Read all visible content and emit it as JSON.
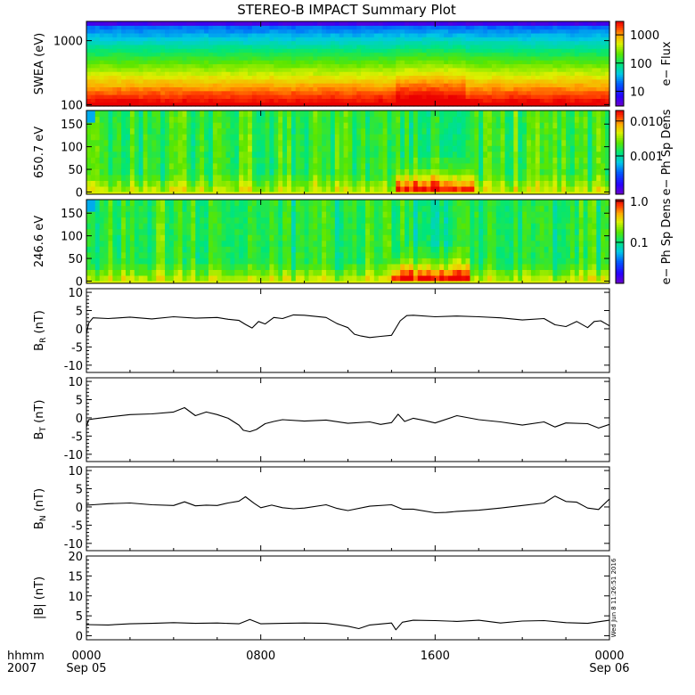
{
  "title": "STEREO-B IMPACT Summary Plot",
  "time_axis": {
    "row1_label": "hhmm",
    "row2_label": "2007",
    "ticks": [
      {
        "hour": 0,
        "top": "0000",
        "bottom": "Sep 05"
      },
      {
        "hour": 8,
        "top": "0800",
        "bottom": ""
      },
      {
        "hour": 16,
        "top": "1600",
        "bottom": ""
      },
      {
        "hour": 24,
        "top": "0000",
        "bottom": "Sep 06"
      }
    ],
    "range_hours": [
      0,
      24
    ]
  },
  "timestamp_text": "Wed Jun  8 11:26:51 2016",
  "chart_data": [
    {
      "type": "heatmap",
      "ylabel": "SWEA (eV)",
      "ylim": [
        95,
        2000
      ],
      "yscale": "log",
      "yticks": [
        {
          "v": 100,
          "label": "100"
        },
        {
          "v": 1000,
          "label": "1000"
        }
      ],
      "colorbar": {
        "label": "e− Flux",
        "scale": "log",
        "range": [
          3,
          3000
        ],
        "ticks": [
          {
            "v": 10,
            "label": "10"
          },
          {
            "v": 100,
            "label": "100"
          },
          {
            "v": 1000,
            "label": "1000"
          }
        ]
      },
      "colormap": "rainbow"
    },
    {
      "type": "heatmap",
      "ylabel": "650.7 eV",
      "ylim": [
        -5,
        180
      ],
      "yticks": [
        {
          "v": 0,
          "label": "0"
        },
        {
          "v": 50,
          "label": "50"
        },
        {
          "v": 100,
          "label": "100"
        },
        {
          "v": 150,
          "label": "150"
        }
      ],
      "colorbar": {
        "label": "e− Ph Sp Dens",
        "scale": "log",
        "range": [
          8e-05,
          0.02
        ],
        "ticks": [
          {
            "v": 0.001,
            "label": "0.001"
          },
          {
            "v": 0.01,
            "label": "0.010"
          }
        ]
      },
      "enhancement": {
        "hours": [
          14.2,
          17.8
        ],
        "pitch_max": 60
      }
    },
    {
      "type": "heatmap",
      "ylabel": "246.6 eV",
      "ylim": [
        -5,
        180
      ],
      "yticks": [
        {
          "v": 0,
          "label": "0"
        },
        {
          "v": 50,
          "label": "50"
        },
        {
          "v": 100,
          "label": "100"
        },
        {
          "v": 150,
          "label": "150"
        }
      ],
      "colorbar": {
        "label": "e− Ph Sp Dens",
        "scale": "log",
        "range": [
          0.01,
          1.1
        ],
        "ticks": [
          {
            "v": 0.1,
            "label": "0.1"
          },
          {
            "v": 1.0,
            "label": "1.0"
          }
        ]
      },
      "enhancement": {
        "hours": [
          14.0,
          17.6
        ],
        "pitch_max": 60
      }
    },
    {
      "type": "line",
      "ylabel": "B_R (nT)",
      "ylim": [
        -12,
        11
      ],
      "yticks": [
        -10,
        -5,
        0,
        5,
        10
      ],
      "x": [
        0,
        0.1,
        0.3,
        1,
        2,
        3,
        4,
        5,
        6,
        6.5,
        7,
        7.3,
        7.6,
        7.9,
        8.2,
        8.6,
        9,
        9.5,
        10,
        11,
        11.5,
        12,
        12.3,
        12.6,
        13,
        13.5,
        14,
        14.2,
        14.4,
        14.7,
        15,
        16,
        17,
        18,
        19,
        20,
        21,
        21.5,
        22,
        22.5,
        23,
        23.3,
        23.6,
        24
      ],
      "values": [
        -1.5,
        1.5,
        3,
        2.8,
        3.2,
        2.7,
        3.3,
        2.9,
        3.1,
        2.6,
        2.3,
        1.2,
        0.2,
        2.0,
        1.3,
        3.1,
        2.8,
        3.8,
        3.7,
        3.1,
        1.4,
        0.3,
        -1.5,
        -2.0,
        -2.4,
        -2.1,
        -1.8,
        0.2,
        2.2,
        3.6,
        3.7,
        3.3,
        3.5,
        3.3,
        3.0,
        2.4,
        2.8,
        1.1,
        0.6,
        2.0,
        0.3,
        2.0,
        2.2,
        0.8
      ]
    },
    {
      "type": "line",
      "ylabel": "B_T (nT)",
      "ylim": [
        -12,
        11
      ],
      "yticks": [
        -10,
        -5,
        0,
        5,
        10
      ],
      "x": [
        0,
        0.1,
        0.3,
        1,
        2,
        3,
        4,
        4.5,
        5,
        5.5,
        6,
        6.5,
        7,
        7.2,
        7.5,
        7.8,
        8.2,
        8.6,
        9,
        10,
        11,
        12,
        13,
        13.5,
        14,
        14.3,
        14.6,
        15,
        15.5,
        16,
        17,
        18,
        19,
        20,
        21,
        21.5,
        22,
        23,
        23.5,
        24
      ],
      "values": [
        -2.5,
        -0.5,
        -0.3,
        0.2,
        0.9,
        1.1,
        1.6,
        2.8,
        0.6,
        1.6,
        0.9,
        -0.1,
        -2.0,
        -3.4,
        -3.8,
        -3.2,
        -1.6,
        -1.0,
        -0.5,
        -0.9,
        -0.6,
        -1.5,
        -1.1,
        -1.8,
        -1.3,
        1.0,
        -1.0,
        -0.1,
        -0.7,
        -1.4,
        0.6,
        -0.5,
        -1.1,
        -2.0,
        -1.1,
        -2.5,
        -1.4,
        -1.6,
        -2.8,
        -1.8
      ]
    },
    {
      "type": "line",
      "ylabel": "B_N (nT)",
      "ylim": [
        -12,
        11
      ],
      "yticks": [
        -10,
        -5,
        0,
        5,
        10
      ],
      "x": [
        0,
        0.3,
        1,
        2,
        3,
        4,
        4.5,
        5,
        5.5,
        6,
        6.5,
        7,
        7.3,
        7.7,
        8,
        8.5,
        9,
        9.5,
        10,
        11,
        11.5,
        12,
        13,
        14,
        14.5,
        15,
        16,
        16.5,
        17,
        18,
        19,
        20,
        21,
        21.5,
        22,
        22.5,
        23,
        23.5,
        24
      ],
      "values": [
        0.5,
        0.6,
        0.9,
        1.1,
        0.6,
        0.4,
        1.4,
        0.3,
        0.5,
        0.4,
        1.1,
        1.6,
        2.8,
        1.0,
        -0.2,
        0.5,
        -0.2,
        -0.5,
        -0.3,
        0.6,
        -0.4,
        -1.0,
        0.2,
        0.6,
        -0.6,
        -0.6,
        -1.6,
        -1.5,
        -1.2,
        -0.9,
        -0.3,
        0.4,
        1.1,
        3.0,
        1.5,
        1.3,
        -0.3,
        -0.7,
        2.2
      ]
    },
    {
      "type": "line",
      "ylabel": "|B| (nT)",
      "ylim": [
        -1,
        20
      ],
      "yticks": [
        0,
        5,
        10,
        15,
        20
      ],
      "x": [
        0,
        1,
        2,
        3,
        4,
        5,
        6,
        7,
        7.5,
        8,
        9,
        10,
        11,
        12,
        12.5,
        13,
        14,
        14.2,
        14.5,
        15,
        16,
        17,
        18,
        19,
        20,
        21,
        22,
        23,
        24
      ],
      "values": [
        2.8,
        2.7,
        3.0,
        3.1,
        3.3,
        3.1,
        3.2,
        3.0,
        4.1,
        3.0,
        3.1,
        3.2,
        3.1,
        2.4,
        1.8,
        2.7,
        3.2,
        1.5,
        3.4,
        3.9,
        3.8,
        3.6,
        3.9,
        3.2,
        3.7,
        3.8,
        3.3,
        3.1,
        3.9
      ]
    }
  ]
}
